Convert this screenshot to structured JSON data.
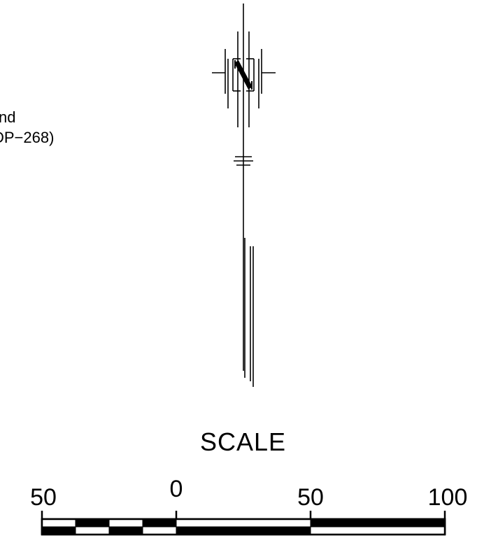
{
  "legend": {
    "line1": "nd",
    "line2": "DP−268)"
  },
  "north_arrow": {
    "label": "N"
  },
  "scale_bar": {
    "title": "SCALE",
    "tick_labels": [
      "50",
      "0",
      "50",
      "100"
    ],
    "colors": {
      "ink": "#000000",
      "paper": "#ffffff"
    }
  }
}
